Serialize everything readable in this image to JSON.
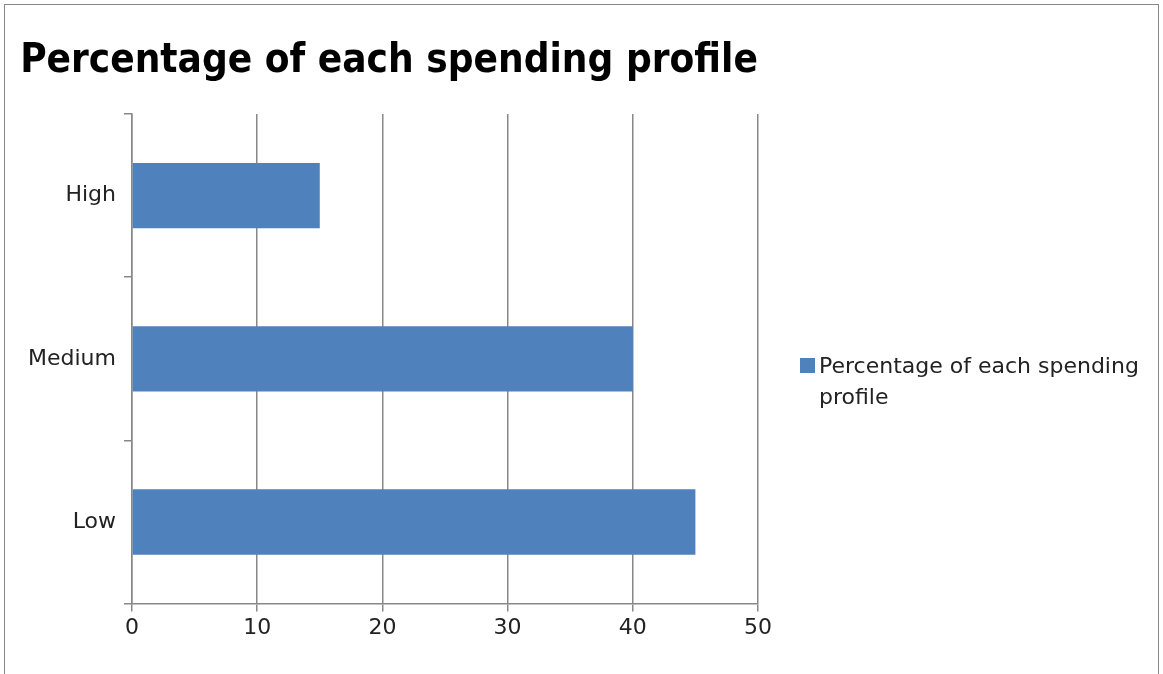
{
  "chart_data": {
    "type": "bar",
    "orientation": "horizontal",
    "title": "Percentage of each spending profile",
    "categories": [
      "High",
      "Medium",
      "Low"
    ],
    "series": [
      {
        "name": "Percentage of each spending profile",
        "color": "#4f81bd",
        "values": [
          15,
          40,
          45
        ]
      }
    ],
    "xlim": [
      0,
      50
    ],
    "xticks": [
      0,
      10,
      20,
      30,
      40,
      50
    ],
    "grid": "x",
    "legend": "right"
  }
}
